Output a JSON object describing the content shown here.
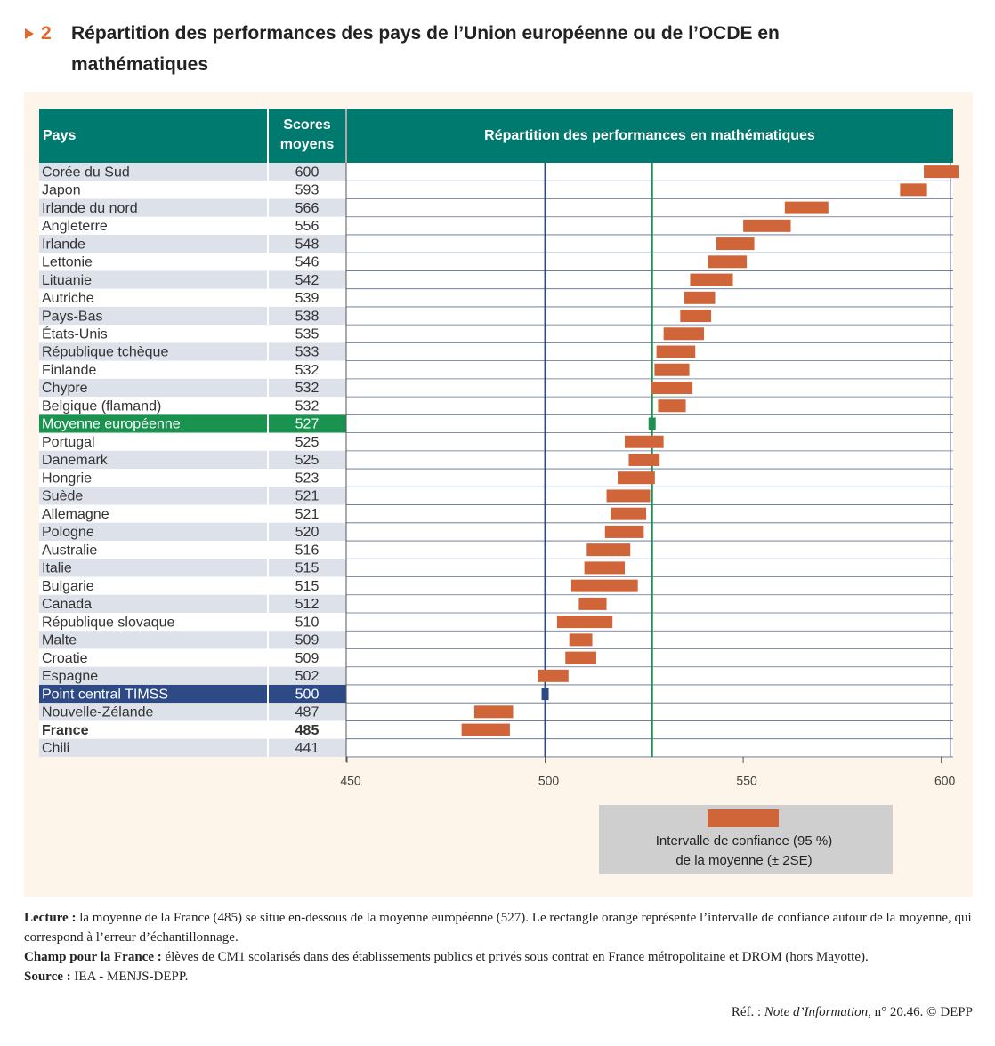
{
  "chart_data": {
    "type": "interval",
    "number": "2",
    "title": "Répartition des performances des pays de l’Union européenne ou de l’OCDE en mathématiques",
    "columns": [
      "Pays",
      "Scores moyens",
      "Répartition des performances en mathématiques"
    ],
    "categories": [
      "Corée du Sud",
      "Japon",
      "Irlande du nord",
      "Angleterre",
      "Irlande",
      "Lettonie",
      "Lituanie",
      "Autriche",
      "Pays-Bas",
      "États-Unis",
      "République tchèque",
      "Finlande",
      "Chypre",
      "Belgique (flamand)",
      "Moyenne européenne",
      "Portugal",
      "Danemark",
      "Hongrie",
      "Suède",
      "Allemagne",
      "Pologne",
      "Australie",
      "Italie",
      "Bulgarie",
      "Canada",
      "République slovaque",
      "Malte",
      "Croatie",
      "Espagne",
      "Point central TIMSS",
      "Nouvelle-Zélande",
      "France",
      "Chili"
    ],
    "values": [
      600,
      593,
      566,
      556,
      548,
      546,
      542,
      539,
      538,
      535,
      533,
      532,
      532,
      532,
      527,
      525,
      525,
      523,
      521,
      521,
      520,
      516,
      515,
      515,
      512,
      510,
      509,
      509,
      502,
      500,
      487,
      485,
      441
    ],
    "errors": [
      4.4,
      3.4,
      5.5,
      6.0,
      4.8,
      4.9,
      5.4,
      3.9,
      3.9,
      5.1,
      4.9,
      4.4,
      5.2,
      3.5,
      null,
      4.9,
      3.9,
      4.7,
      5.5,
      4.5,
      4.9,
      5.5,
      5.1,
      8.4,
      3.5,
      7.0,
      2.9,
      3.9,
      3.9,
      null,
      4.9,
      6.1,
      null
    ],
    "color": "#d0653a",
    "xlim": [
      450,
      603
    ],
    "xticks": [
      450,
      500,
      550,
      600
    ],
    "highlights": [
      {
        "index": 14,
        "color": "#1a9350"
      },
      {
        "index": 29,
        "color": "#2d4a86"
      }
    ],
    "bold_rows": [
      31
    ],
    "legend": [
      "Intervalle de confiance (95 %)",
      "de la moyenne (± 2SE)"
    ],
    "notes": [
      {
        "label": "Lecture :",
        "text": "la moyenne de la France (485) se situe en-dessous de la moyenne européenne (527). Le rectangle orange représente l’intervalle de confiance autour de la moyenne, qui correspond à l’erreur d’échantillonnage."
      },
      {
        "label": "Champ pour la France :",
        "text": "élèves de CM1 scolarisés dans des établissements publics et privés sous contrat en France métropolitaine et DROM (hors Mayotte)."
      },
      {
        "label": "Source :",
        "text": "IEA - MENJS-DEPP."
      }
    ],
    "ref": {
      "prefix": "Réf. :",
      "italic": "Note d’Information,",
      "suffix": "n° 20.46. © DEPP"
    }
  }
}
